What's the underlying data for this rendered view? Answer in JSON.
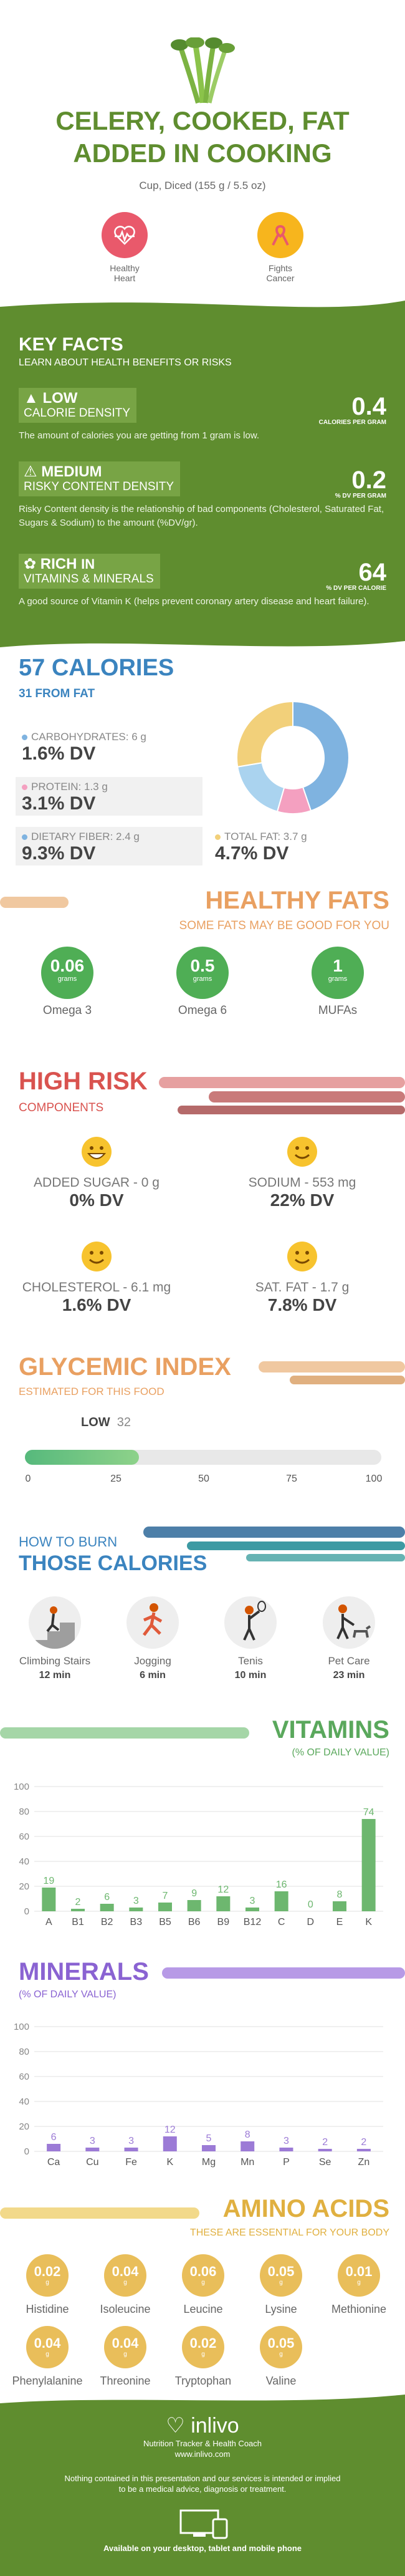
{
  "header": {
    "title_line1": "CELERY, COOKED, FAT",
    "title_line2": "ADDED IN COOKING",
    "serving": "Cup, Diced (155 g / 5.5 oz)",
    "badges": [
      {
        "label1": "Healthy",
        "label2": "Heart",
        "icon": "heart-monitor-icon",
        "color": "#e9596b"
      },
      {
        "label1": "Fights",
        "label2": "Cancer",
        "icon": "awareness-ribbon-icon",
        "color": "#e9596b"
      }
    ]
  },
  "key_facts": {
    "title": "KEY FACTS",
    "subtitle": "LEARN ABOUT HEALTH BENEFITS OR RISKS",
    "items": [
      {
        "level": "LOW",
        "label": "CALORIE DENSITY",
        "value": "0.4",
        "unit": "CALORIES PER GRAM",
        "desc": "The amount of calories you are getting from 1 gram is low.",
        "icon": "flame-icon"
      },
      {
        "level": "MEDIUM",
        "label": "RISKY CONTENT DENSITY",
        "value": "0.2",
        "unit": "% DV PER GRAM",
        "desc": "Risky Content density is the relationship of bad components (Cholesterol, Saturated Fat, Sugars & Sodium) to the amount (%DV/gr).",
        "icon": "warning-icon"
      },
      {
        "level": "RICH",
        "level_suffix": "IN",
        "label": "VITAMINS & MINERALS",
        "value": "64",
        "unit": "% DV PER CALORIE",
        "desc": "A good source of Vitamin K (helps prevent coronary artery disease and heart failure).",
        "icon": "leaf-icon"
      }
    ]
  },
  "calories": {
    "title": "57 CALORIES",
    "subtitle": "31 FROM FAT",
    "nutrients": [
      {
        "label": "CARBOHYDRATES: 6 g",
        "value": "1.6% DV",
        "color": "#7fb3e0"
      },
      {
        "label": "PROTEIN: 1.3 g",
        "value": "3.1% DV",
        "color": "#f4a0c0"
      },
      {
        "label": "DIETARY FIBER: 2.4 g",
        "value": "9.3% DV",
        "color": "#7fb3e0"
      },
      {
        "label": "TOTAL FAT: 3.7 g",
        "value": "4.7% DV",
        "color": "#f2d07a"
      }
    ],
    "donut": [
      {
        "name": "Carbohydrates",
        "value": 6,
        "color": "#7fb3e0"
      },
      {
        "name": "Protein",
        "value": 1.3,
        "color": "#f4a0c0"
      },
      {
        "name": "Dietary Fiber",
        "value": 2.4,
        "color": "#aad3ef"
      },
      {
        "name": "Total Fat",
        "value": 3.7,
        "color": "#f2d07a"
      }
    ]
  },
  "healthy_fats": {
    "title": "HEALTHY FATS",
    "subtitle": "SOME FATS MAY BE GOOD FOR YOU",
    "items": [
      {
        "value": "0.06",
        "unit": "grams",
        "label": "Omega 3"
      },
      {
        "value": "0.5",
        "unit": "grams",
        "label": "Omega 6"
      },
      {
        "value": "1",
        "unit": "grams",
        "label": "MUFAs"
      }
    ]
  },
  "high_risk": {
    "title": "HIGH RISK",
    "subtitle": "COMPONENTS",
    "items": [
      {
        "label": "ADDED SUGAR - 0 g",
        "value": "0% DV",
        "face": "grin-face-icon"
      },
      {
        "label": "SODIUM - 553 mg",
        "value": "22% DV",
        "face": "smile-face-icon"
      },
      {
        "label": "CHOLESTEROL - 6.1 mg",
        "value": "1.6% DV",
        "face": "smile-face-icon"
      },
      {
        "label": "SAT. FAT - 1.7 g",
        "value": "7.8% DV",
        "face": "smile-face-icon"
      }
    ]
  },
  "glycemic": {
    "title": "GLYCEMIC INDEX",
    "subtitle": "ESTIMATED FOR THIS FOOD",
    "level": "LOW",
    "value": "32",
    "value_num": 32,
    "ticks": [
      "0",
      "25",
      "50",
      "75",
      "100"
    ]
  },
  "burn": {
    "title1": "HOW TO BURN",
    "title2": "THOSE CALORIES",
    "activities": [
      {
        "label": "Climbing Stairs",
        "time": "12 min",
        "icon": "stairs-climber-icon"
      },
      {
        "label": "Jogging",
        "time": "6 min",
        "icon": "jogger-icon"
      },
      {
        "label": "Tenis",
        "time": "10 min",
        "icon": "tennis-player-icon"
      },
      {
        "label": "Pet Care",
        "time": "23 min",
        "icon": "dog-walker-icon"
      }
    ]
  },
  "vitamins": {
    "title": "VITAMINS",
    "subtitle": "(% OF DAILY VALUE)",
    "color": "#6db76f",
    "yticks": [
      "0",
      "20",
      "40",
      "60",
      "80",
      "100"
    ]
  },
  "minerals": {
    "title": "MINERALS",
    "subtitle": "(% OF DAILY VALUE)",
    "color": "#9c7bd6",
    "yticks": [
      "0",
      "20",
      "40",
      "60",
      "80",
      "100"
    ]
  },
  "chart_data": [
    {
      "type": "bar",
      "title": "VITAMINS",
      "categories": [
        "A",
        "B1",
        "B2",
        "B3",
        "B5",
        "B6",
        "B9",
        "B12",
        "C",
        "D",
        "E",
        "K"
      ],
      "values": [
        19,
        2,
        6,
        3,
        7,
        9,
        12,
        3,
        16,
        0,
        8,
        74
      ],
      "ylim": [
        0,
        100
      ],
      "grid": true
    },
    {
      "type": "bar",
      "title": "MINERALS",
      "categories": [
        "Ca",
        "Cu",
        "Fe",
        "K",
        "Mg",
        "Mn",
        "P",
        "Se",
        "Zn"
      ],
      "values": [
        6,
        3,
        3,
        12,
        5,
        8,
        3,
        2,
        2
      ],
      "ylim": [
        0,
        100
      ],
      "grid": true
    }
  ],
  "amino": {
    "title": "AMINO ACIDS",
    "subtitle": "THESE ARE ESSENTIAL FOR YOUR BODY",
    "items": [
      {
        "value": "0.02",
        "unit": "g",
        "label": "Histidine"
      },
      {
        "value": "0.04",
        "unit": "g",
        "label": "Isoleucine"
      },
      {
        "value": "0.06",
        "unit": "g",
        "label": "Leucine"
      },
      {
        "value": "0.05",
        "unit": "g",
        "label": "Lysine"
      },
      {
        "value": "0.01",
        "unit": "g",
        "label": "Methionine"
      },
      {
        "value": "0.04",
        "unit": "g",
        "label": "Phenylalanine"
      },
      {
        "value": "0.04",
        "unit": "g",
        "label": "Threonine"
      },
      {
        "value": "0.02",
        "unit": "g",
        "label": "Tryptophan"
      },
      {
        "value": "0.05",
        "unit": "g",
        "label": "Valine"
      }
    ]
  },
  "footer": {
    "brand": "inlivo",
    "tagline": "Nutrition Tracker & Health Coach",
    "url": "www.inlivo.com",
    "disclaimer1": "Nothing contained in this presentation and our services is intended or implied",
    "disclaimer2": "to be a medical advice, diagnosis or treatment.",
    "available": "Available on your desktop, tablet and mobile phone"
  }
}
